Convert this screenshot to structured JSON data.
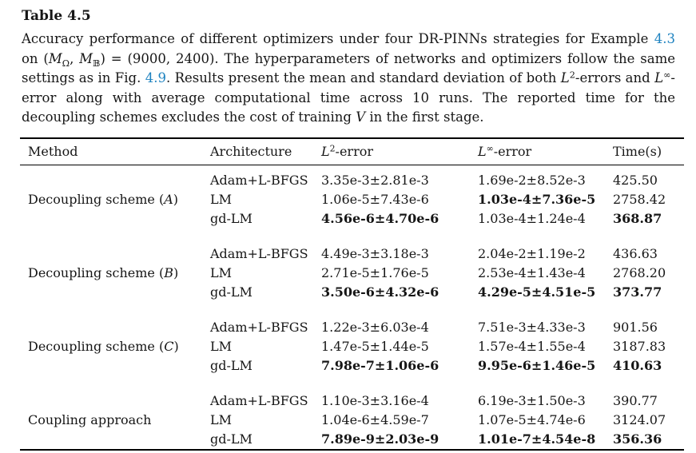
{
  "title": "Table 4.5",
  "caption": {
    "segments": [
      {
        "t": "Accuracy performance of different optimizers under four DR-PINNs strategies for Example "
      },
      {
        "t": "4.3",
        "s": "link"
      },
      {
        "t": " on ("
      },
      {
        "t": "M",
        "s": "mi"
      },
      {
        "t": "Ω",
        "s": "sub"
      },
      {
        "t": ", "
      },
      {
        "t": "M",
        "s": "mi"
      },
      {
        "t": "𝔹",
        "s": "sub"
      },
      {
        "t": ") = (9000, 2400). The hyperparameters of networks and optimizers follow the same settings as in Fig. "
      },
      {
        "t": "4.9",
        "s": "link"
      },
      {
        "t": ". Results present the mean and standard deviation of both "
      },
      {
        "t": "L",
        "s": "mi"
      },
      {
        "t": "2",
        "s": "sup"
      },
      {
        "t": "-errors and "
      },
      {
        "t": "L",
        "s": "mi"
      },
      {
        "t": "∞",
        "s": "sup"
      },
      {
        "t": "-error along with average computational time across 10 runs. The reported time for the decoupling schemes excludes the cost of training "
      },
      {
        "t": "V",
        "s": "cal"
      },
      {
        "t": " in the first stage."
      }
    ]
  },
  "table": {
    "columns": [
      {
        "segments": [
          {
            "t": "Method"
          }
        ]
      },
      {
        "segments": [
          {
            "t": "Architecture"
          }
        ]
      },
      {
        "segments": [
          {
            "t": "L",
            "s": "mi"
          },
          {
            "t": "2",
            "s": "sup"
          },
          {
            "t": "-error"
          }
        ]
      },
      {
        "segments": [
          {
            "t": "L",
            "s": "mi"
          },
          {
            "t": "∞",
            "s": "sup"
          },
          {
            "t": "-error"
          }
        ]
      },
      {
        "segments": [
          {
            "t": "Time(s)"
          }
        ]
      }
    ],
    "groups": [
      {
        "method": {
          "prefix": "Decoupling scheme (",
          "letter": "A",
          "suffix": ")"
        },
        "rows": [
          {
            "arch": "Adam+L-BFGS",
            "l2": {
              "text": "3.35e-3±2.81e-3",
              "bold": false
            },
            "linf": {
              "text": "1.69e-2±8.52e-3",
              "bold": false
            },
            "time": {
              "text": "425.50",
              "bold": false
            }
          },
          {
            "arch": "LM",
            "l2": {
              "text": "1.06e-5±7.43e-6",
              "bold": false
            },
            "linf": {
              "text": "1.03e-4±7.36e-5",
              "bold": true
            },
            "time": {
              "text": "2758.42",
              "bold": false
            }
          },
          {
            "arch": "gd-LM",
            "l2": {
              "text": "4.56e-6±4.70e-6",
              "bold": true
            },
            "linf": {
              "text": "1.03e-4±1.24e-4",
              "bold": false
            },
            "time": {
              "text": "368.87",
              "bold": true
            }
          }
        ]
      },
      {
        "method": {
          "prefix": "Decoupling scheme (",
          "letter": "B",
          "suffix": ")"
        },
        "rows": [
          {
            "arch": "Adam+L-BFGS",
            "l2": {
              "text": "4.49e-3±3.18e-3",
              "bold": false
            },
            "linf": {
              "text": "2.04e-2±1.19e-2",
              "bold": false
            },
            "time": {
              "text": "436.63",
              "bold": false
            }
          },
          {
            "arch": "LM",
            "l2": {
              "text": "2.71e-5±1.76e-5",
              "bold": false
            },
            "linf": {
              "text": "2.53e-4±1.43e-4",
              "bold": false
            },
            "time": {
              "text": "2768.20",
              "bold": false
            }
          },
          {
            "arch": "gd-LM",
            "l2": {
              "text": "3.50e-6±4.32e-6",
              "bold": true
            },
            "linf": {
              "text": "4.29e-5±4.51e-5",
              "bold": true
            },
            "time": {
              "text": "373.77",
              "bold": true
            }
          }
        ]
      },
      {
        "method": {
          "prefix": "Decoupling scheme (",
          "letter": "C",
          "suffix": ")"
        },
        "rows": [
          {
            "arch": "Adam+L-BFGS",
            "l2": {
              "text": "1.22e-3±6.03e-4",
              "bold": false
            },
            "linf": {
              "text": "7.51e-3±4.33e-3",
              "bold": false
            },
            "time": {
              "text": "901.56",
              "bold": false
            }
          },
          {
            "arch": "LM",
            "l2": {
              "text": "1.47e-5±1.44e-5",
              "bold": false
            },
            "linf": {
              "text": "1.57e-4±1.55e-4",
              "bold": false
            },
            "time": {
              "text": "3187.83",
              "bold": false
            }
          },
          {
            "arch": "gd-LM",
            "l2": {
              "text": "7.98e-7±1.06e-6",
              "bold": true
            },
            "linf": {
              "text": "9.95e-6±1.46e-5",
              "bold": true
            },
            "time": {
              "text": "410.63",
              "bold": true
            }
          }
        ]
      },
      {
        "method": {
          "prefix": "Coupling approach",
          "letter": "",
          "suffix": ""
        },
        "rows": [
          {
            "arch": "Adam+L-BFGS",
            "l2": {
              "text": "1.10e-3±3.16e-4",
              "bold": false
            },
            "linf": {
              "text": "6.19e-3±1.50e-3",
              "bold": false
            },
            "time": {
              "text": "390.77",
              "bold": false
            }
          },
          {
            "arch": "LM",
            "l2": {
              "text": "1.04e-6±4.59e-7",
              "bold": false
            },
            "linf": {
              "text": "1.07e-5±4.74e-6",
              "bold": false
            },
            "time": {
              "text": "3124.07",
              "bold": false
            }
          },
          {
            "arch": "gd-LM",
            "l2": {
              "text": "7.89e-9±2.03e-9",
              "bold": true
            },
            "linf": {
              "text": "1.01e-7±4.54e-8",
              "bold": true
            },
            "time": {
              "text": "356.36",
              "bold": true
            }
          }
        ]
      }
    ]
  },
  "colors": {
    "link": "#1f83c0",
    "text": "#161616",
    "rule": "#000000",
    "background": "#ffffff"
  }
}
